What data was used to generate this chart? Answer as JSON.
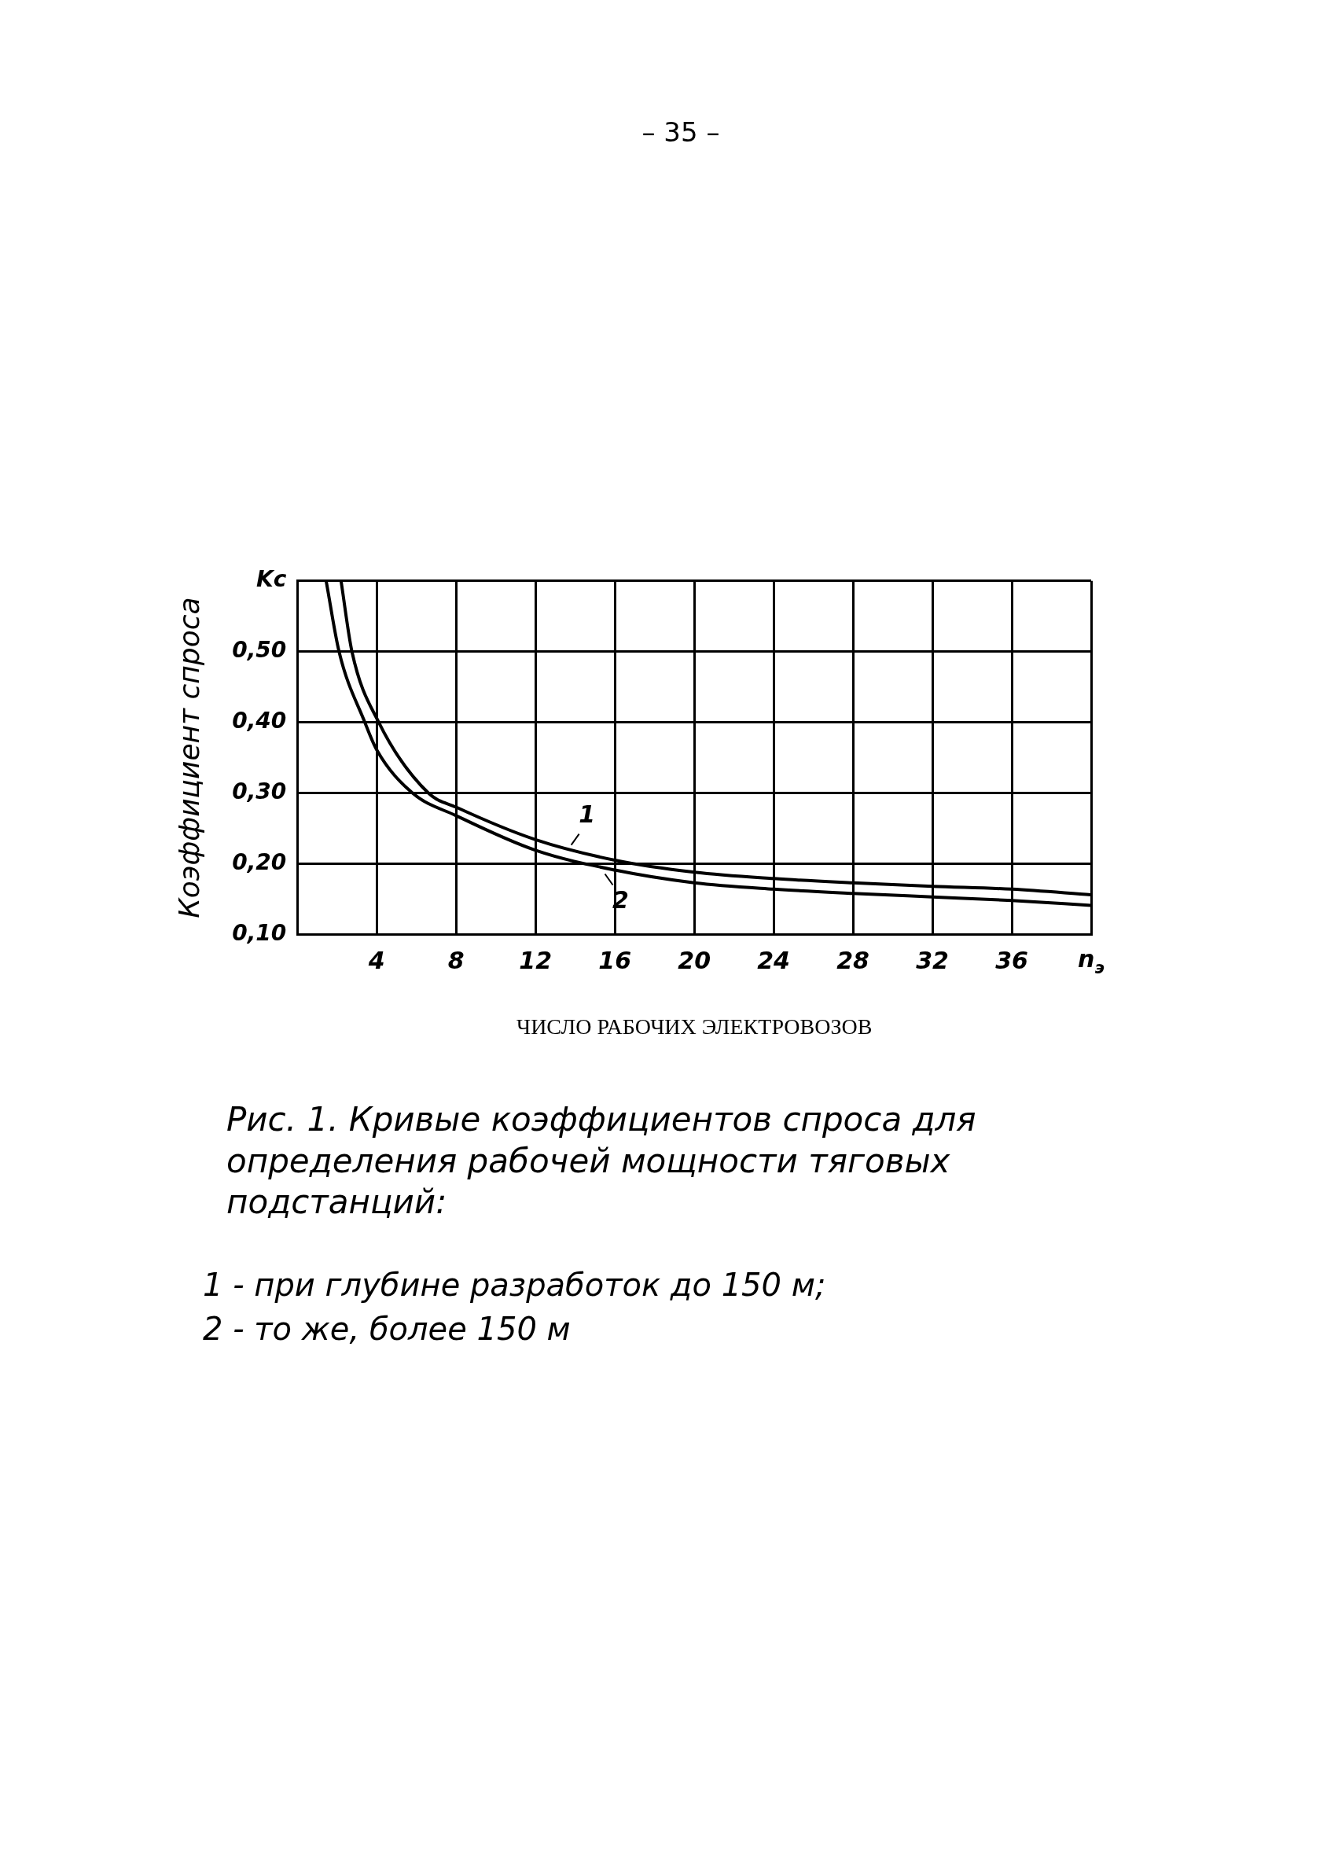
{
  "chart_data": {
    "type": "line",
    "title": "Рис. 1. Кривые коэффициентов спроса для определения рабочей мощности тяговых подстанций:",
    "xlabel": "ЧИСЛО РАБОЧИХ ЭЛЕКТРОВОЗОВ",
    "ylabel": "Коэффициент спроса",
    "xlim": [
      0,
      40
    ],
    "xticks": [
      4,
      8,
      12,
      16,
      20,
      24,
      28,
      32,
      36,
      {
        "value": 40,
        "label": "n$_{э}$"
      }
    ],
    "ylim": [
      0.1,
      0.6
    ],
    "yticks": [
      {
        "value": 0.1,
        "label": "0,10"
      },
      {
        "value": 0.2,
        "label": "0,20"
      },
      {
        "value": 0.3,
        "label": "0,30"
      },
      {
        "value": 0.4,
        "label": "0,40"
      },
      {
        "value": 0.5,
        "label": "0,50"
      },
      {
        "value": 0.6,
        "label": "Kc"
      }
    ],
    "grid": true,
    "marker": "none",
    "line_style": "solid",
    "series": [
      {
        "color": "#000000",
        "x": [
          2.2,
          2.75,
          4.1,
          6.6,
          8,
          12,
          16,
          20,
          24,
          28,
          32,
          36,
          40
        ],
        "values": [
          0.6,
          0.5,
          0.4,
          0.3,
          0.28,
          0.234,
          0.205,
          0.188,
          0.179,
          0.173,
          0.168,
          0.164,
          0.156
        ]
      },
      {
        "color": "#000000",
        "x": [
          1.45,
          2.1,
          3.4,
          4,
          5.8,
          8,
          12,
          16,
          20,
          24,
          28,
          32,
          36,
          40
        ],
        "values": [
          0.6,
          0.5,
          0.4,
          0.361,
          0.3,
          0.268,
          0.219,
          0.191,
          0.173,
          0.164,
          0.158,
          0.153,
          0.148,
          0.141
        ]
      }
    ],
    "annotations": [
      {
        "text": "1",
        "x": 13.8,
        "y": 0.222
      },
      {
        "text": "2",
        "x": 15.5,
        "y": 0.19
      },
      "– 35 –",
      "1 - при глубине разработок до 150 м;",
      "2 - то же, более 150 м"
    ]
  }
}
